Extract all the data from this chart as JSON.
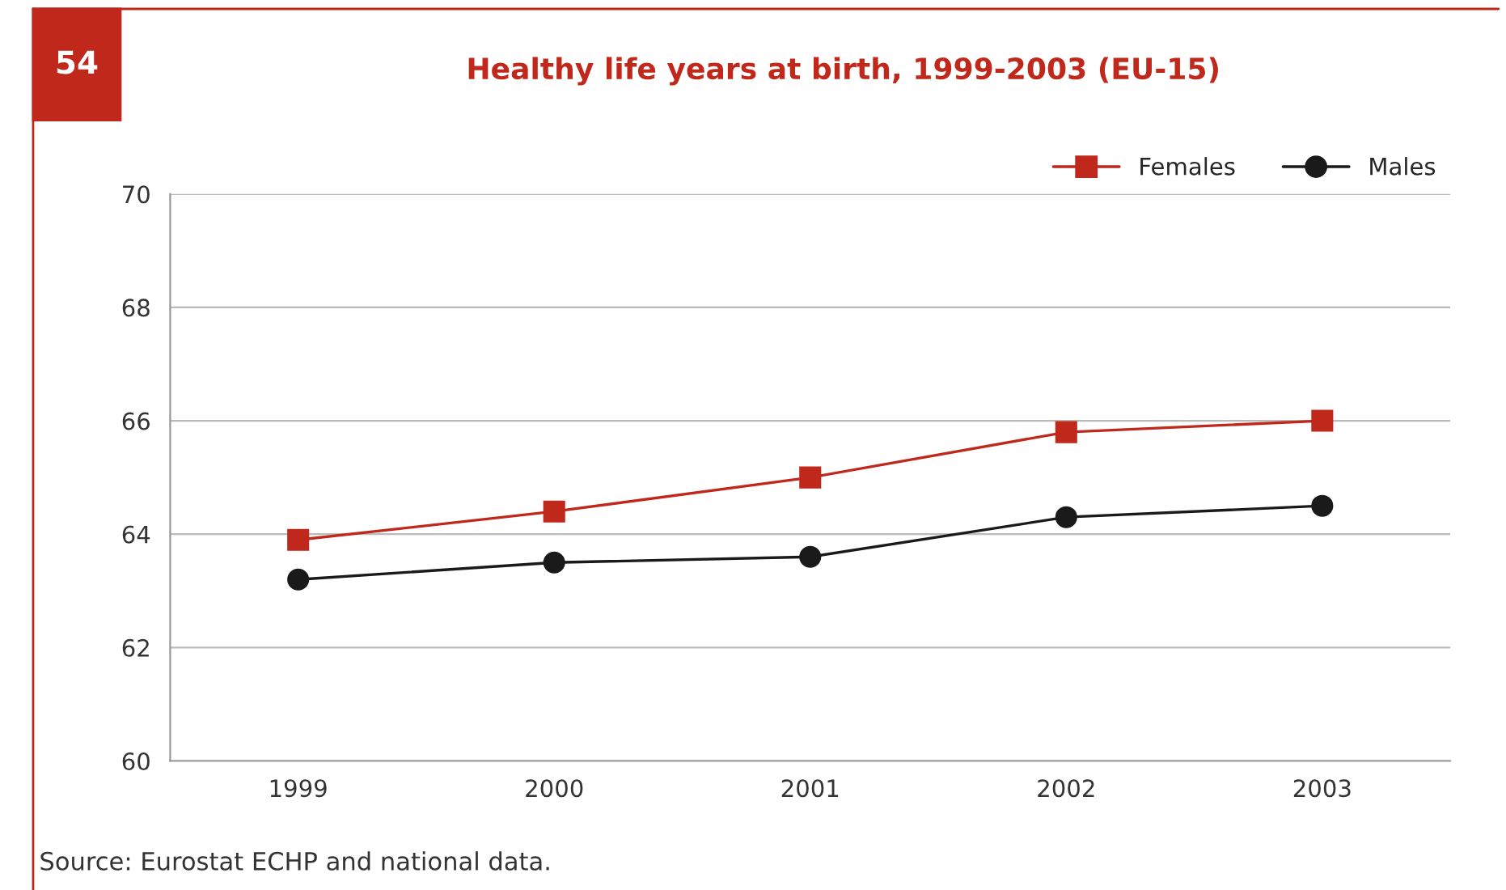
{
  "chart_data": {
    "type": "line",
    "title": "Healthy life years at birth, 1999-2003 (EU-15)",
    "categories": [
      "1999",
      "2000",
      "2001",
      "2002",
      "2003"
    ],
    "series": [
      {
        "name": "Females",
        "color": "#c0281c",
        "marker": "square",
        "values": [
          63.9,
          64.4,
          65.0,
          65.8,
          66.0
        ]
      },
      {
        "name": "Males",
        "color": "#1a1a1a",
        "marker": "circle",
        "values": [
          63.2,
          63.5,
          63.6,
          64.3,
          64.5
        ]
      }
    ],
    "ylim": [
      60,
      70
    ],
    "yticks": [
      60,
      62,
      64,
      66,
      68,
      70
    ],
    "grid": "y",
    "legend": "top right",
    "annotations": [
      "54",
      "Source: Eurostat ECHP and national data."
    ]
  }
}
